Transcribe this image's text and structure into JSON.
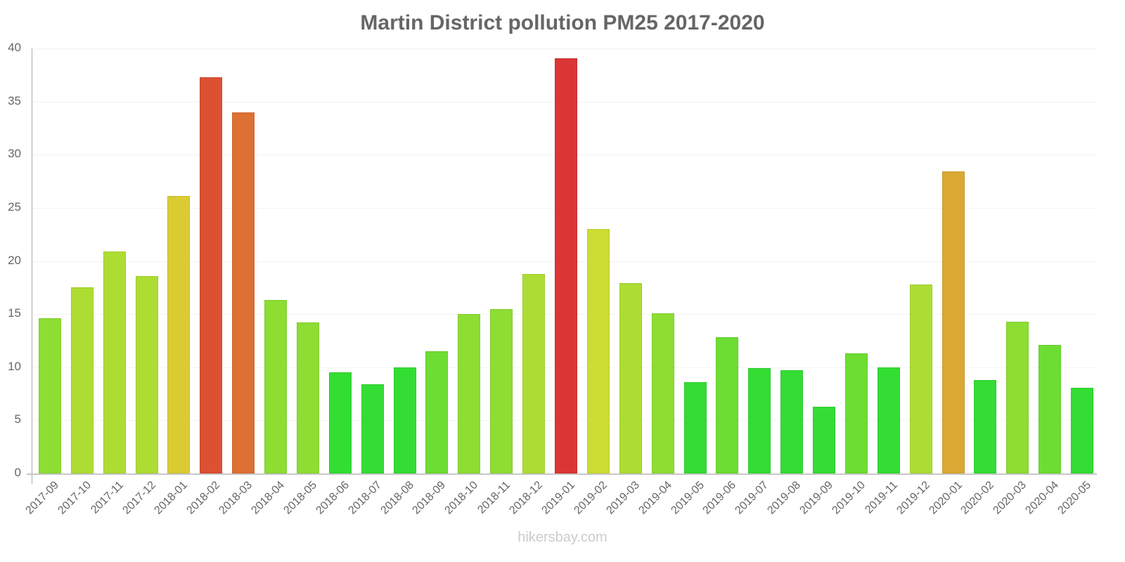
{
  "chart_data": {
    "type": "bar",
    "title": "Martin District pollution PM25 2017-2020",
    "xlabel": "",
    "ylabel": "",
    "ylim": [
      0,
      40
    ],
    "yticks": [
      0,
      5,
      10,
      15,
      20,
      25,
      30,
      35,
      40
    ],
    "grid": true,
    "legend": null,
    "categories": [
      "2017-09",
      "2017-10",
      "2017-11",
      "2017-12",
      "2018-01",
      "2018-02",
      "2018-03",
      "2018-04",
      "2018-05",
      "2018-06",
      "2018-07",
      "2018-08",
      "2018-09",
      "2018-10",
      "2018-11",
      "2018-12",
      "2019-01",
      "2019-02",
      "2019-03",
      "2019-04",
      "2019-05",
      "2019-06",
      "2019-07",
      "2019-08",
      "2019-09",
      "2019-10",
      "2019-11",
      "2019-12",
      "2020-01",
      "2020-02",
      "2020-03",
      "2020-04",
      "2020-05"
    ],
    "values": [
      14.6,
      17.5,
      20.9,
      18.6,
      26.1,
      37.3,
      34.0,
      16.3,
      14.2,
      9.5,
      8.4,
      10.0,
      11.5,
      15.0,
      15.5,
      18.8,
      39.1,
      23.0,
      17.9,
      15.1,
      8.6,
      12.8,
      9.9,
      9.7,
      6.3,
      11.3,
      10.0,
      17.8,
      28.4,
      8.8,
      14.3,
      12.1,
      8.1
    ],
    "colors": [
      "#8ddd33",
      "#addd33",
      "#addd33",
      "#addd33",
      "#dbcb33",
      "#dc5033",
      "#dd7033",
      "#8ddd33",
      "#8ddd33",
      "#33dd33",
      "#33dd33",
      "#33dd33",
      "#6ddd33",
      "#8ddd33",
      "#8ddd33",
      "#addd33",
      "#dc3535",
      "#cddd33",
      "#addd33",
      "#8ddd33",
      "#33dd33",
      "#6ddd33",
      "#33dd33",
      "#33dd33",
      "#33dd33",
      "#6ddd33",
      "#33dd33",
      "#addd33",
      "#dba833",
      "#33dd33",
      "#8ddd33",
      "#6ddd33",
      "#33dd33"
    ]
  },
  "watermark": "hikersbay.com"
}
